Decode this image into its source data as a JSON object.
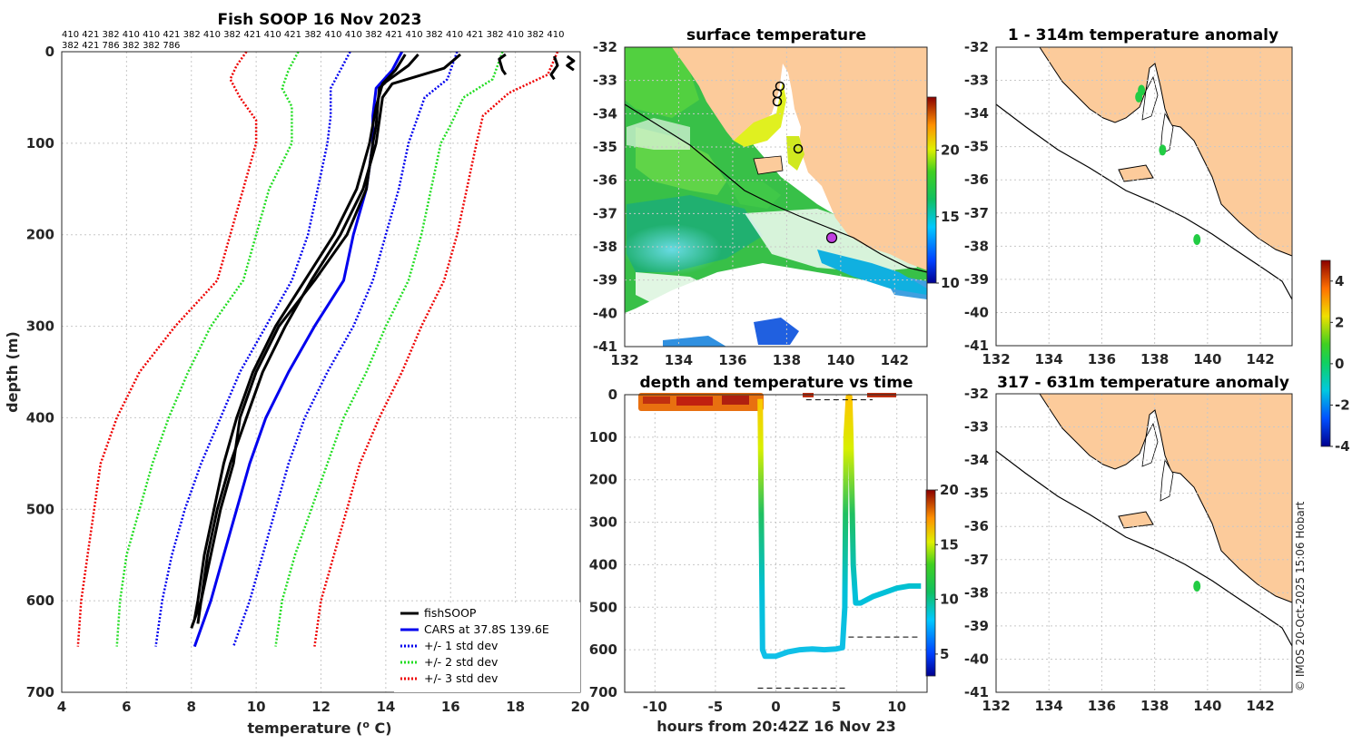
{
  "copyright": "© IMOS 20-Oct-2025 15:06 Hobart",
  "colors": {
    "land": "#fccb9b",
    "profile": "#000000",
    "cars": "#0000ee",
    "sd1": "#0000ee",
    "sd2": "#22dd22",
    "sd3": "#ee0000",
    "bathy": "#000000",
    "anomaly_dot": "#22cc44"
  },
  "chart_data": [
    {
      "id": "profile",
      "type": "line",
      "title": "Fish SOOP 16 Nov 2023",
      "xlabel": "temperature (",
      "xlabel_sup": "o",
      "xlabel_end": " C)",
      "ylabel": "depth (m)",
      "xlim": [
        4,
        20
      ],
      "ylim": [
        0,
        700
      ],
      "y_reversed": true,
      "xticks": [
        "4",
        "6",
        "8",
        "10",
        "12",
        "14",
        "16",
        "18",
        "20"
      ],
      "yticks": [
        "0",
        "100",
        "200",
        "300",
        "400",
        "500",
        "600",
        "700"
      ],
      "top_labels_line1": "410 421 382 410 410 421 382 410 382 421 410 421 382 410 410 382 421 410 382 410 421 382 410 382 410",
      "top_labels_line2": "382 421 786 382 382 786",
      "legend": [
        {
          "label": "fishSOOP",
          "style": "solid",
          "color": "#000000"
        },
        {
          "label": "CARS at 37.8S 139.6E",
          "style": "solid",
          "color": "#0000ee"
        },
        {
          "label": "+/- 1 std dev",
          "style": "dotted",
          "color": "#0000ee"
        },
        {
          "label": "+/- 2 std dev",
          "style": "dotted",
          "color": "#22dd22"
        },
        {
          "label": "+/- 3 std dev",
          "style": "dotted",
          "color": "#ee0000"
        }
      ],
      "series": [
        {
          "name": "CARS",
          "color": "#0000ee",
          "dash": false,
          "points": [
            [
              14.5,
              0
            ],
            [
              14.2,
              20
            ],
            [
              13.7,
              40
            ],
            [
              13.6,
              70
            ],
            [
              13.6,
              100
            ],
            [
              13.4,
              150
            ],
            [
              13.0,
              200
            ],
            [
              12.7,
              250
            ],
            [
              11.8,
              300
            ],
            [
              11.0,
              350
            ],
            [
              10.3,
              400
            ],
            [
              9.8,
              450
            ],
            [
              9.4,
              500
            ],
            [
              9.0,
              550
            ],
            [
              8.6,
              600
            ],
            [
              8.1,
              650
            ]
          ]
        },
        {
          "name": "+1 sd",
          "color": "#0000ee",
          "dash": true,
          "points": [
            [
              16.2,
              0
            ],
            [
              15.9,
              30
            ],
            [
              15.2,
              50
            ],
            [
              14.7,
              100
            ],
            [
              14.4,
              150
            ],
            [
              14.0,
              200
            ],
            [
              13.6,
              250
            ],
            [
              13.0,
              300
            ],
            [
              12.2,
              350
            ],
            [
              11.5,
              400
            ],
            [
              11.0,
              450
            ],
            [
              10.6,
              500
            ],
            [
              10.2,
              550
            ],
            [
              9.8,
              600
            ],
            [
              9.3,
              650
            ]
          ]
        },
        {
          "name": "-1 sd",
          "color": "#0000ee",
          "dash": true,
          "points": [
            [
              12.9,
              0
            ],
            [
              12.6,
              20
            ],
            [
              12.3,
              40
            ],
            [
              12.3,
              70
            ],
            [
              12.2,
              100
            ],
            [
              11.9,
              150
            ],
            [
              11.6,
              200
            ],
            [
              11.1,
              250
            ],
            [
              10.3,
              300
            ],
            [
              9.5,
              350
            ],
            [
              8.9,
              400
            ],
            [
              8.3,
              450
            ],
            [
              7.8,
              500
            ],
            [
              7.4,
              550
            ],
            [
              7.1,
              600
            ],
            [
              6.9,
              650
            ]
          ]
        },
        {
          "name": "+2 sd",
          "color": "#22dd22",
          "dash": true,
          "points": [
            [
              17.6,
              0
            ],
            [
              17.3,
              30
            ],
            [
              16.4,
              50
            ],
            [
              16.0,
              80
            ],
            [
              15.7,
              100
            ],
            [
              15.4,
              150
            ],
            [
              15.1,
              200
            ],
            [
              14.7,
              250
            ],
            [
              14.0,
              300
            ],
            [
              13.4,
              350
            ],
            [
              12.7,
              400
            ],
            [
              12.2,
              450
            ],
            [
              11.7,
              500
            ],
            [
              11.2,
              550
            ],
            [
              10.8,
              600
            ],
            [
              10.6,
              650
            ]
          ]
        },
        {
          "name": "-2 sd",
          "color": "#22dd22",
          "dash": true,
          "points": [
            [
              11.3,
              0
            ],
            [
              11.0,
              20
            ],
            [
              10.8,
              40
            ],
            [
              11.1,
              60
            ],
            [
              11.1,
              100
            ],
            [
              10.4,
              150
            ],
            [
              10.0,
              200
            ],
            [
              9.6,
              250
            ],
            [
              8.6,
              300
            ],
            [
              7.9,
              350
            ],
            [
              7.3,
              400
            ],
            [
              6.8,
              450
            ],
            [
              6.4,
              500
            ],
            [
              6.0,
              550
            ],
            [
              5.8,
              600
            ],
            [
              5.7,
              650
            ]
          ]
        },
        {
          "name": "+3 sd",
          "color": "#ee0000",
          "dash": true,
          "points": [
            [
              19.3,
              0
            ],
            [
              19.0,
              25
            ],
            [
              17.8,
              45
            ],
            [
              17.0,
              70
            ],
            [
              16.8,
              100
            ],
            [
              16.5,
              150
            ],
            [
              16.2,
              200
            ],
            [
              15.8,
              250
            ],
            [
              15.1,
              300
            ],
            [
              14.5,
              350
            ],
            [
              13.8,
              400
            ],
            [
              13.2,
              450
            ],
            [
              12.8,
              500
            ],
            [
              12.4,
              550
            ],
            [
              12.0,
              600
            ],
            [
              11.8,
              650
            ]
          ]
        },
        {
          "name": "-3 sd",
          "color": "#ee0000",
          "dash": true,
          "points": [
            [
              9.7,
              0
            ],
            [
              9.4,
              15
            ],
            [
              9.2,
              30
            ],
            [
              9.5,
              50
            ],
            [
              10.0,
              75
            ],
            [
              10.0,
              100
            ],
            [
              9.6,
              150
            ],
            [
              9.2,
              200
            ],
            [
              8.8,
              250
            ],
            [
              7.5,
              300
            ],
            [
              6.4,
              350
            ],
            [
              5.7,
              400
            ],
            [
              5.2,
              450
            ],
            [
              5.0,
              500
            ],
            [
              4.8,
              550
            ],
            [
              4.6,
              600
            ],
            [
              4.5,
              650
            ]
          ]
        },
        {
          "name": "fish1",
          "color": "#000000",
          "dash": false,
          "points": [
            [
              15.0,
              3
            ],
            [
              14.7,
              15
            ],
            [
              14.0,
              33
            ],
            [
              13.8,
              40
            ],
            [
              13.7,
              80
            ],
            [
              13.6,
              100
            ],
            [
              13.4,
              150
            ],
            [
              12.8,
              200
            ],
            [
              11.8,
              250
            ],
            [
              10.7,
              300
            ],
            [
              10.0,
              350
            ],
            [
              9.5,
              400
            ],
            [
              9.3,
              450
            ],
            [
              8.9,
              500
            ],
            [
              8.6,
              550
            ],
            [
              8.3,
              600
            ],
            [
              8.0,
              630
            ]
          ]
        },
        {
          "name": "fish2",
          "color": "#000000",
          "dash": false,
          "points": [
            [
              14.6,
              3
            ],
            [
              14.3,
              20
            ],
            [
              13.9,
              35
            ],
            [
              13.7,
              60
            ],
            [
              13.5,
              100
            ],
            [
              13.1,
              150
            ],
            [
              12.4,
              200
            ],
            [
              11.5,
              250
            ],
            [
              10.6,
              300
            ],
            [
              9.9,
              350
            ],
            [
              9.4,
              400
            ],
            [
              9.0,
              450
            ],
            [
              8.7,
              500
            ],
            [
              8.4,
              550
            ],
            [
              8.2,
              600
            ],
            [
              8.1,
              620
            ]
          ]
        },
        {
          "name": "fish3",
          "color": "#000000",
          "dash": false,
          "points": [
            [
              16.3,
              3
            ],
            [
              15.8,
              18
            ],
            [
              14.2,
              35
            ],
            [
              13.9,
              50
            ],
            [
              13.7,
              100
            ],
            [
              13.3,
              150
            ],
            [
              12.6,
              200
            ],
            [
              11.7,
              250
            ],
            [
              10.9,
              300
            ],
            [
              10.2,
              350
            ],
            [
              9.7,
              400
            ],
            [
              9.2,
              450
            ],
            [
              8.8,
              500
            ],
            [
              8.5,
              550
            ],
            [
              8.3,
              600
            ],
            [
              8.2,
              625
            ]
          ]
        },
        {
          "name": "fish4",
          "color": "#000000",
          "dash": false,
          "points": [
            [
              17.7,
              3
            ],
            [
              17.5,
              8
            ],
            [
              17.6,
              20
            ],
            [
              17.7,
              25
            ]
          ]
        },
        {
          "name": "fish5",
          "color": "#000000",
          "dash": false,
          "points": [
            [
              19.2,
              5
            ],
            [
              19.3,
              15
            ],
            [
              19.1,
              25
            ],
            [
              19.2,
              30
            ]
          ]
        },
        {
          "name": "fish6",
          "color": "#000000",
          "dash": false,
          "points": [
            [
              19.6,
              5
            ],
            [
              19.8,
              10
            ],
            [
              19.6,
              15
            ],
            [
              19.8,
              20
            ]
          ]
        }
      ]
    },
    {
      "id": "sst_map",
      "type": "heatmap",
      "title": "surface temperature",
      "xlim": [
        132,
        143.2
      ],
      "ylim": [
        -41,
        -32
      ],
      "xticks": [
        "132",
        "134",
        "136",
        "138",
        "140",
        "142"
      ],
      "yticks": [
        "-32",
        "-33",
        "-34",
        "-35",
        "-36",
        "-37",
        "-38",
        "-39",
        "-40",
        "-41"
      ],
      "colorbar_range": [
        10,
        24
      ],
      "colorbar_ticks": [
        "10",
        "15",
        "20"
      ],
      "vessel_positions": [
        [
          137.5,
          -33.2
        ],
        [
          137.4,
          -33.4
        ],
        [
          137.4,
          -33.5
        ],
        [
          138.3,
          -35.2
        ],
        [
          139.6,
          -37.8
        ]
      ]
    },
    {
      "id": "time_series",
      "type": "scatter",
      "title": "depth and temperature vs time",
      "xlabel": "hours from 20:42Z 16 Nov 23",
      "xlim": [
        -12.5,
        12.5
      ],
      "ylim": [
        0,
        700
      ],
      "y_reversed": true,
      "xticks": [
        "-10",
        "-5",
        "0",
        "5",
        "10"
      ],
      "yticks": [
        "0",
        "100",
        "200",
        "300",
        "400",
        "500",
        "600",
        "700"
      ],
      "colorbar_range": [
        3,
        20
      ],
      "colorbar_ticks": [
        "5",
        "10",
        "15",
        "20"
      ],
      "track": [
        [
          -1.3,
          10
        ],
        [
          -1.2,
          300
        ],
        [
          -1.1,
          600
        ],
        [
          -0.9,
          615
        ],
        [
          0,
          615
        ],
        [
          1,
          605
        ],
        [
          2,
          600
        ],
        [
          3,
          598
        ],
        [
          4,
          600
        ],
        [
          5,
          598
        ],
        [
          5.5,
          595
        ],
        [
          5.7,
          500
        ],
        [
          5.8,
          100
        ],
        [
          6.0,
          5
        ],
        [
          6.1,
          5
        ],
        [
          6.2,
          100
        ],
        [
          6.4,
          400
        ],
        [
          6.6,
          490
        ],
        [
          7,
          490
        ],
        [
          8,
          475
        ],
        [
          9,
          465
        ],
        [
          10,
          455
        ],
        [
          11,
          450
        ],
        [
          12,
          450
        ]
      ],
      "dashed_lines": [
        [
          [
            2.5,
            12
          ],
          [
            8,
            12
          ]
        ],
        [
          [
            6,
            570
          ],
          [
            12,
            570
          ]
        ],
        [
          [
            -1.5,
            690
          ],
          [
            6,
            690
          ]
        ]
      ]
    },
    {
      "id": "anomaly_shallow",
      "type": "scatter",
      "title": "1 - 314m temperature anomaly",
      "xlim": [
        132,
        143.2
      ],
      "ylim": [
        -41,
        -32
      ],
      "xticks": [
        "132",
        "134",
        "136",
        "138",
        "140",
        "142"
      ],
      "yticks": [
        "-32",
        "-33",
        "-34",
        "-35",
        "-36",
        "-37",
        "-38",
        "-39",
        "-40",
        "-41"
      ],
      "points": [
        [
          137.5,
          -33.3
        ],
        [
          137.4,
          -33.5
        ],
        [
          138.3,
          -35.1
        ],
        [
          139.6,
          -37.8
        ]
      ]
    },
    {
      "id": "anomaly_deep",
      "type": "scatter",
      "title": "317 - 631m temperature anomaly",
      "xlim": [
        132,
        143.2
      ],
      "ylim": [
        -41,
        -32
      ],
      "xticks": [
        "132",
        "134",
        "136",
        "138",
        "140",
        "142"
      ],
      "yticks": [
        "-32",
        "-33",
        "-34",
        "-35",
        "-36",
        "-37",
        "-38",
        "-39",
        "-40",
        "-41"
      ],
      "points": [
        [
          139.6,
          -37.8
        ]
      ]
    },
    {
      "id": "anomaly_colorbar",
      "type": "colorbar",
      "range": [
        -4,
        5
      ],
      "ticks": [
        "-4",
        "-2",
        "0",
        "2",
        "4"
      ]
    }
  ]
}
